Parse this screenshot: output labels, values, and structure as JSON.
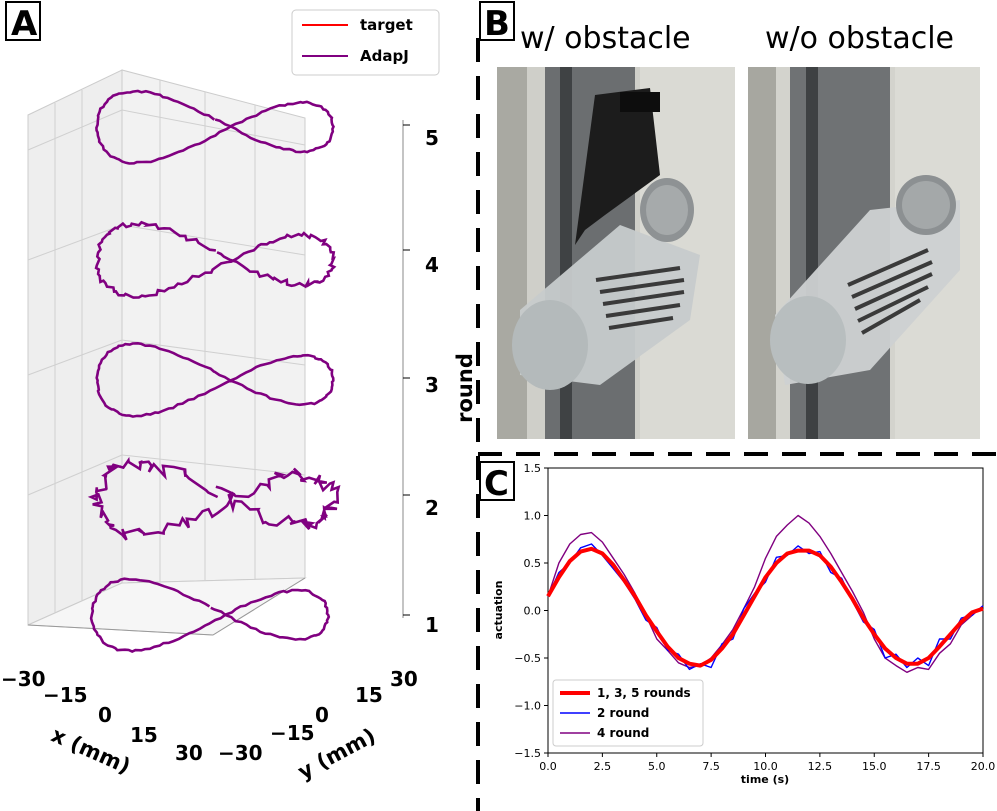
{
  "panel_labels": {
    "a": "A",
    "b": "B",
    "c": "C"
  },
  "photos": {
    "with_obstacle": "w/ obstacle",
    "without_obstacle": "w/o obstacle"
  },
  "colors": {
    "target": "#ff0000",
    "adapj": "#800080",
    "round2": "#0000ff",
    "round4": "#800080"
  },
  "chart_data": [
    {
      "type": "line",
      "projection": "3d",
      "legend": [
        {
          "name": "target",
          "color": "#ff0000"
        },
        {
          "name": "AdapJ",
          "color": "#800080"
        }
      ],
      "legend_position": "top-right",
      "xlabel": "x (mm)",
      "ylabel": "y (mm)",
      "zlabel": "round",
      "x_ticks": [
        "−30",
        "−15",
        "0",
        "15",
        "30"
      ],
      "y_ticks": [
        "−30",
        "−15",
        "0",
        "15",
        "30"
      ],
      "z_ticks": [
        "1",
        "2",
        "3",
        "4",
        "5"
      ],
      "xlim": [
        -30,
        30
      ],
      "ylim": [
        -30,
        30
      ],
      "zlim": [
        1,
        5
      ],
      "trajectory": "figure-eight repeated at each round",
      "rounds": [
        1,
        2,
        3,
        4,
        5
      ]
    },
    {
      "type": "line",
      "xlabel": "time (s)",
      "ylabel": "actuation",
      "xlim": [
        0,
        20
      ],
      "ylim": [
        -1.5,
        1.5
      ],
      "x_ticks": [
        "0.0",
        "2.5",
        "5.0",
        "7.5",
        "10.0",
        "12.5",
        "15.0",
        "17.5",
        "20.0"
      ],
      "y_ticks": [
        "1.5",
        "1.0",
        "0.5",
        "0.0",
        "−0.5",
        "−1.0",
        "−1.5"
      ],
      "legend_position": "bottom-left",
      "x": [
        0,
        0.5,
        1,
        1.5,
        2,
        2.5,
        3,
        3.5,
        4,
        4.5,
        5,
        5.5,
        6,
        6.5,
        7,
        7.5,
        8,
        8.5,
        9,
        9.5,
        10,
        10.5,
        11,
        11.5,
        12,
        12.5,
        13,
        13.5,
        14,
        14.5,
        15,
        15.5,
        16,
        16.5,
        17,
        17.5,
        18,
        18.5,
        19,
        19.5,
        20
      ],
      "series": [
        {
          "name": "1, 3, 5 rounds",
          "color": "#ff0000",
          "values": [
            0.15,
            0.35,
            0.52,
            0.62,
            0.65,
            0.6,
            0.48,
            0.32,
            0.15,
            -0.05,
            -0.22,
            -0.38,
            -0.5,
            -0.56,
            -0.58,
            -0.52,
            -0.4,
            -0.25,
            -0.05,
            0.15,
            0.35,
            0.5,
            0.6,
            0.63,
            0.63,
            0.58,
            0.46,
            0.3,
            0.12,
            -0.08,
            -0.25,
            -0.4,
            -0.5,
            -0.56,
            -0.56,
            -0.5,
            -0.38,
            -0.25,
            -0.12,
            -0.02,
            0.02
          ]
        },
        {
          "name": "2 round",
          "color": "#0000ff",
          "values": [
            0.15,
            0.4,
            0.5,
            0.66,
            0.7,
            0.58,
            0.44,
            0.3,
            0.12,
            -0.1,
            -0.18,
            -0.42,
            -0.46,
            -0.62,
            -0.56,
            -0.6,
            -0.35,
            -0.3,
            0.02,
            0.18,
            0.3,
            0.56,
            0.58,
            0.68,
            0.6,
            0.62,
            0.4,
            0.34,
            0.1,
            -0.12,
            -0.2,
            -0.5,
            -0.46,
            -0.6,
            -0.5,
            -0.58,
            -0.3,
            -0.3,
            -0.08,
            -0.05,
            0.05
          ]
        },
        {
          "name": "4 round",
          "color": "#800080",
          "values": [
            0.15,
            0.5,
            0.7,
            0.8,
            0.82,
            0.72,
            0.55,
            0.38,
            0.18,
            -0.05,
            -0.3,
            -0.42,
            -0.55,
            -0.6,
            -0.58,
            -0.5,
            -0.36,
            -0.2,
            0.02,
            0.25,
            0.55,
            0.78,
            0.9,
            1.0,
            0.92,
            0.78,
            0.6,
            0.4,
            0.2,
            -0.02,
            -0.3,
            -0.5,
            -0.58,
            -0.65,
            -0.6,
            -0.62,
            -0.45,
            -0.35,
            -0.15,
            -0.05,
            0.05
          ]
        }
      ]
    }
  ]
}
